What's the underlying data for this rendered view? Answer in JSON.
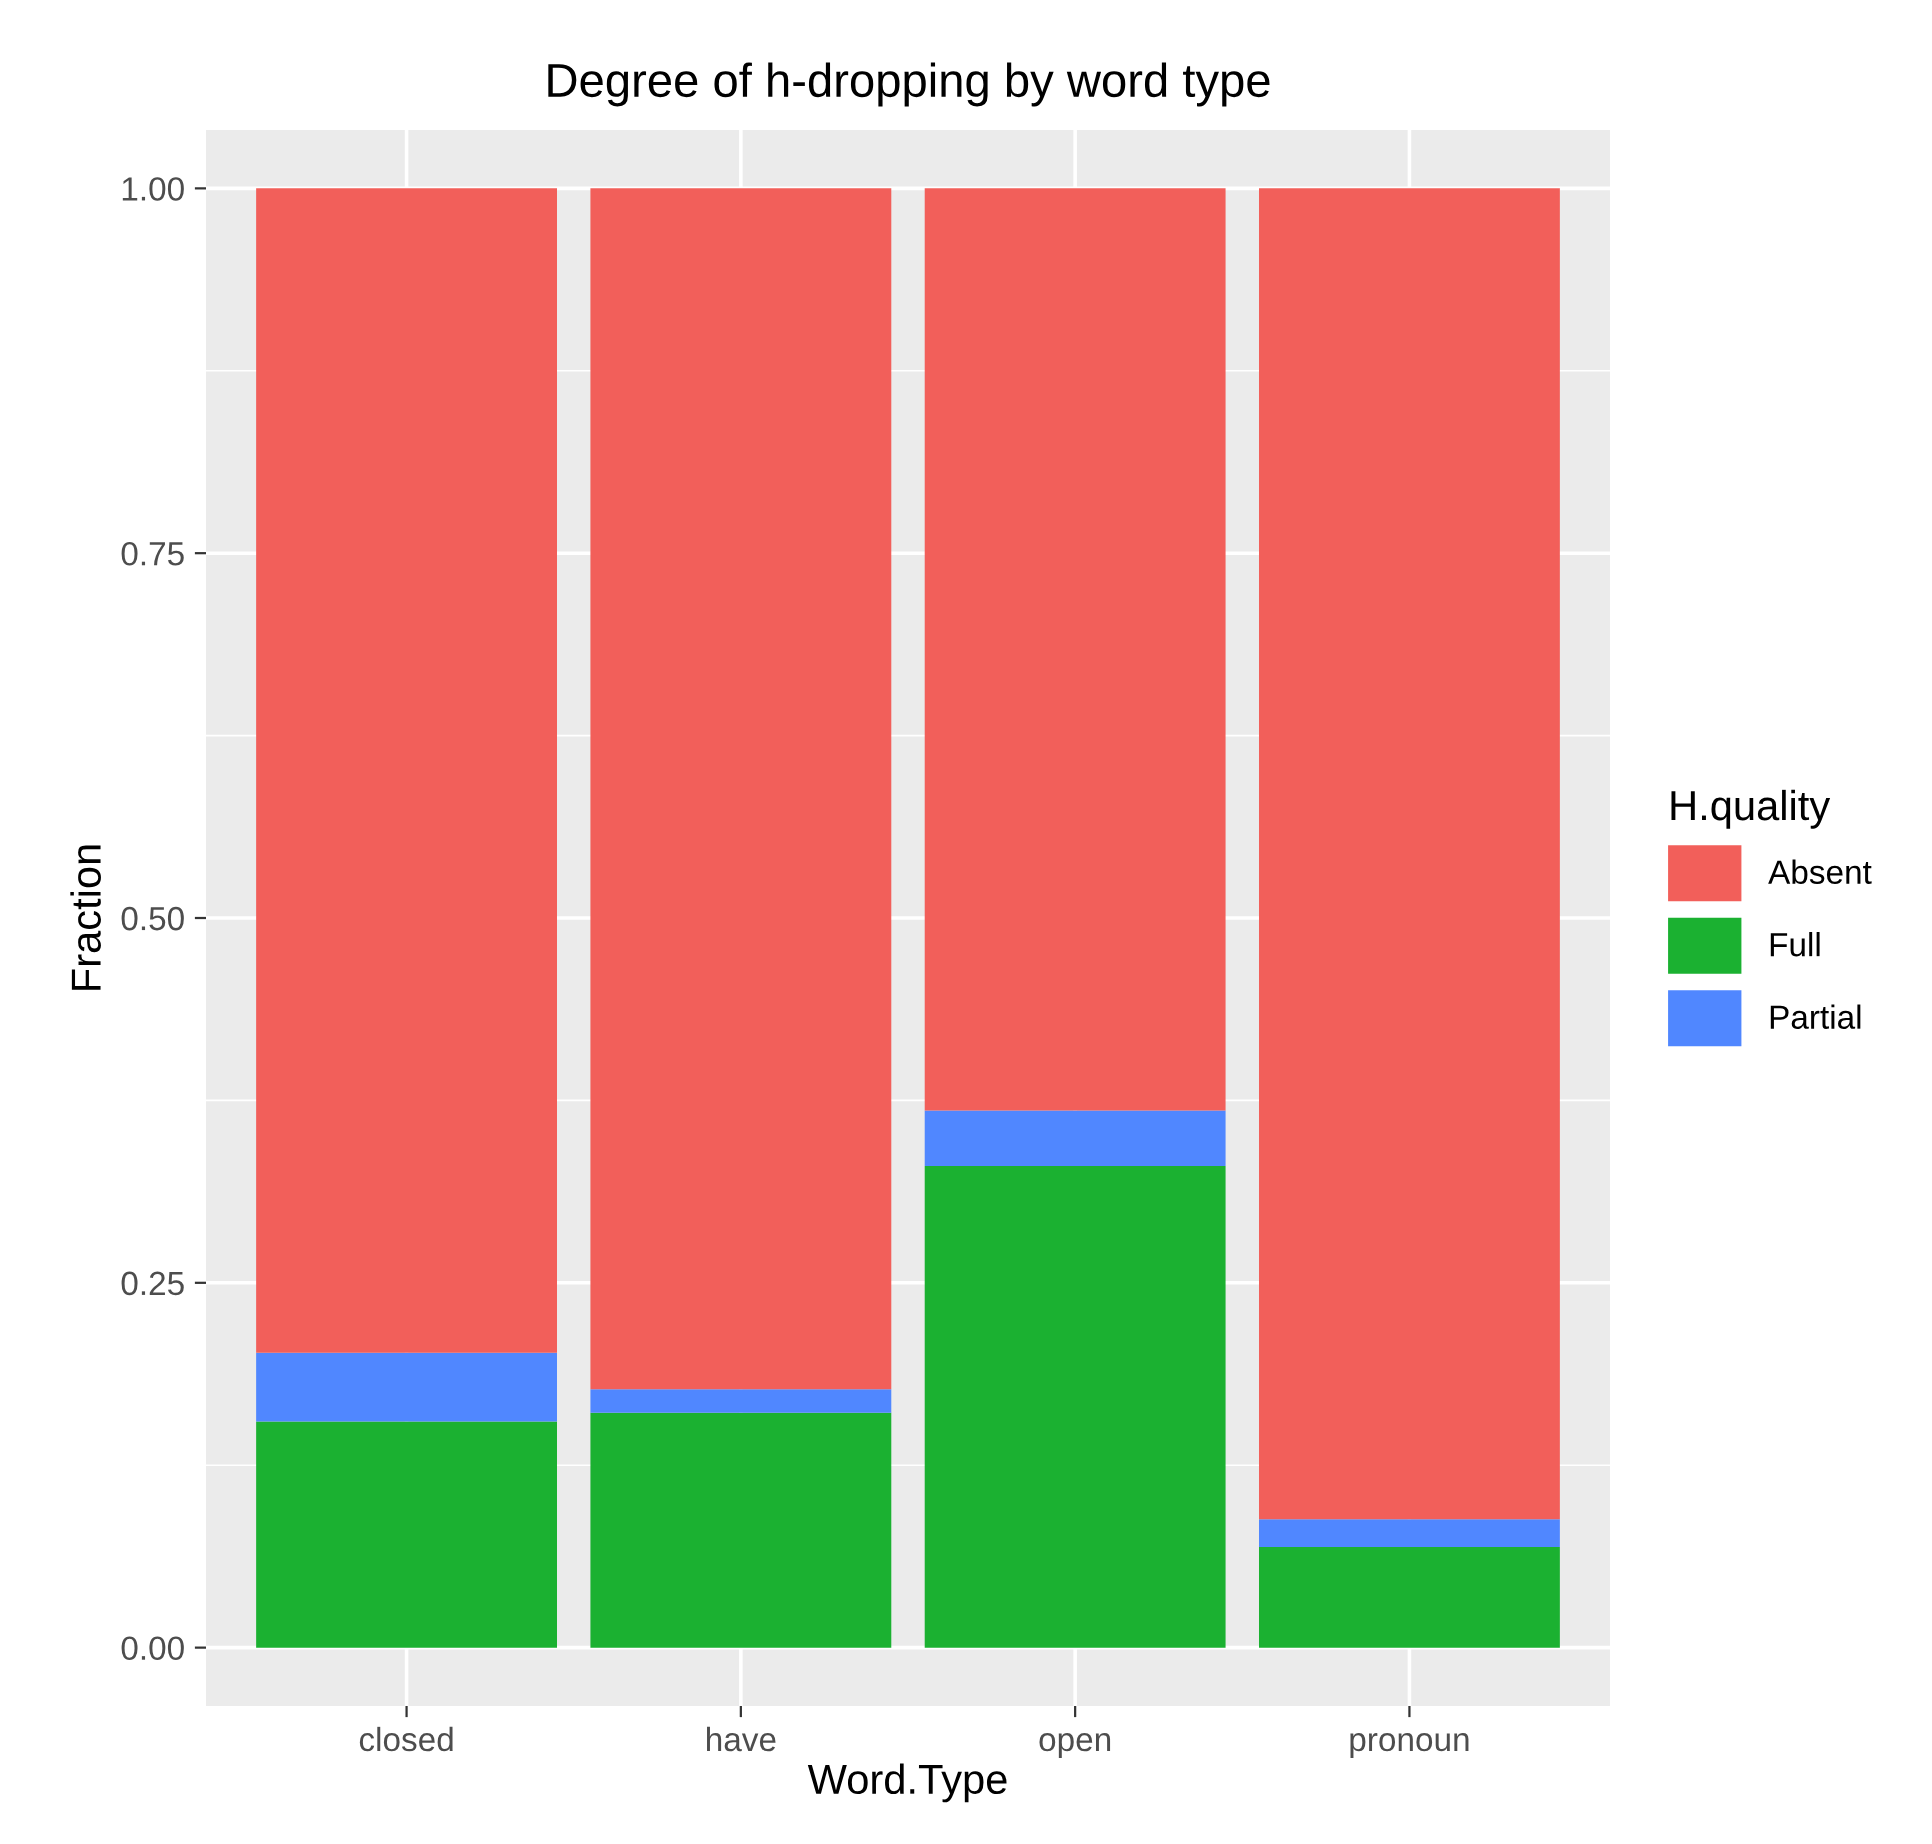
{
  "chart_data": {
    "type": "bar",
    "title": "Degree of h-dropping by word type",
    "xlabel": "Word.Type",
    "ylabel": "Fraction",
    "legend_title": "H.quality",
    "categories": [
      "closed",
      "have",
      "open",
      "pronoun"
    ],
    "series": [
      {
        "name": "Full",
        "color": "#1bb131",
        "values": [
          0.155,
          0.161,
          0.33,
          0.069
        ]
      },
      {
        "name": "Partial",
        "color": "#5087ff",
        "values": [
          0.047,
          0.016,
          0.038,
          0.019
        ]
      },
      {
        "name": "Absent",
        "color": "#f25f5a",
        "values": [
          0.798,
          0.823,
          0.632,
          0.912
        ]
      }
    ],
    "stacked": true,
    "ylim": [
      -0.04,
      1.04
    ],
    "yticks": [
      {
        "value": 0,
        "label": "0.00"
      },
      {
        "value": 0.25,
        "label": "0.25"
      },
      {
        "value": 0.5,
        "label": "0.50"
      },
      {
        "value": 0.75,
        "label": "0.75"
      },
      {
        "value": 1,
        "label": "1.00"
      }
    ],
    "grid": true,
    "legend": "right"
  }
}
